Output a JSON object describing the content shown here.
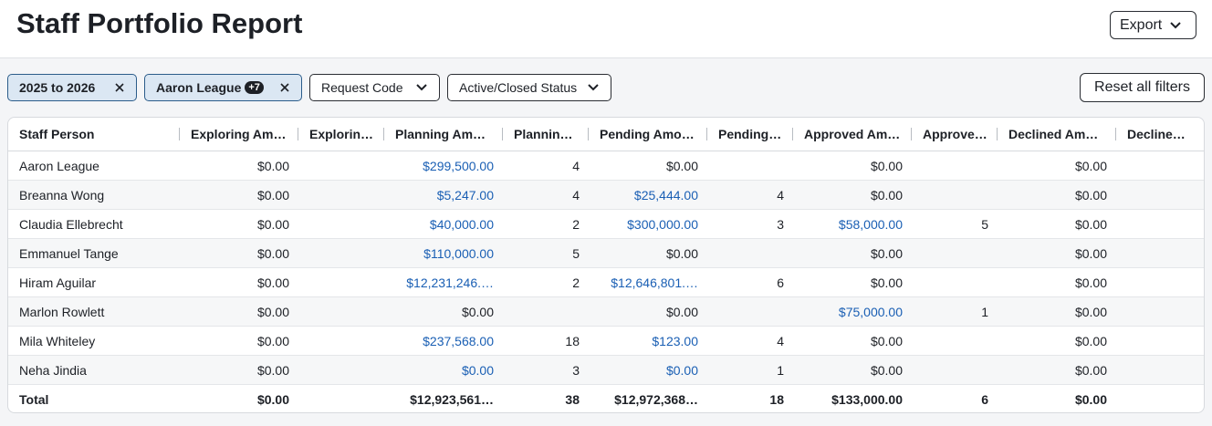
{
  "header": {
    "title": "Staff Portfolio Report",
    "export": "Export"
  },
  "filters": [
    {
      "label": "2025 to 2026"
    },
    {
      "label": "Aaron League",
      "badge": "+7"
    },
    {
      "label": "Request Code"
    },
    {
      "label": "Active/Closed Status"
    }
  ],
  "reset": "Reset all filters",
  "table": {
    "columns": [
      "Staff Person",
      "Exploring Am…",
      "Explorin…",
      "Planning Am…",
      "Plannin…",
      "Pending Amo…",
      "Pending…",
      "Approved Am…",
      "Approve…",
      "Declined Am…",
      "Decline…"
    ],
    "rows": [
      [
        "Aaron League",
        "$0.00",
        null,
        {
          "text": "$299,500.00",
          "link": true
        },
        "4",
        "$0.00",
        null,
        "$0.00",
        null,
        "$0.00",
        null
      ],
      [
        "Breanna Wong",
        "$0.00",
        null,
        {
          "text": "$5,247.00",
          "link": true
        },
        "4",
        {
          "text": "$25,444.00",
          "link": true
        },
        "4",
        "$0.00",
        null,
        "$0.00",
        null
      ],
      [
        "Claudia Ellebrecht",
        "$0.00",
        null,
        {
          "text": "$40,000.00",
          "link": true
        },
        "2",
        {
          "text": "$300,000.00",
          "link": true
        },
        "3",
        {
          "text": "$58,000.00",
          "link": true
        },
        "5",
        "$0.00",
        null
      ],
      [
        "Emmanuel Tange",
        "$0.00",
        null,
        {
          "text": "$110,000.00",
          "link": true
        },
        "5",
        "$0.00",
        null,
        "$0.00",
        null,
        "$0.00",
        null
      ],
      [
        "Hiram Aguilar",
        "$0.00",
        null,
        {
          "text": "$12,231,246.…",
          "link": true
        },
        "2",
        {
          "text": "$12,646,801.…",
          "link": true
        },
        "6",
        "$0.00",
        null,
        "$0.00",
        null
      ],
      [
        "Marlon Rowlett",
        "$0.00",
        null,
        "$0.00",
        null,
        "$0.00",
        null,
        {
          "text": "$75,000.00",
          "link": true
        },
        "1",
        "$0.00",
        null
      ],
      [
        "Mila Whiteley",
        "$0.00",
        null,
        {
          "text": "$237,568.00",
          "link": true
        },
        "18",
        {
          "text": "$123.00",
          "link": true
        },
        "4",
        "$0.00",
        null,
        "$0.00",
        null
      ],
      [
        "Neha Jindia",
        "$0.00",
        null,
        {
          "text": "$0.00",
          "link": true
        },
        "3",
        {
          "text": "$0.00",
          "link": true
        },
        "1",
        "$0.00",
        null,
        "$0.00",
        null
      ]
    ],
    "total": [
      "Total",
      "$0.00",
      null,
      "$12,923,561…",
      "38",
      "$12,972,368…",
      "18",
      "$133,000.00",
      "6",
      "$0.00",
      null
    ]
  }
}
